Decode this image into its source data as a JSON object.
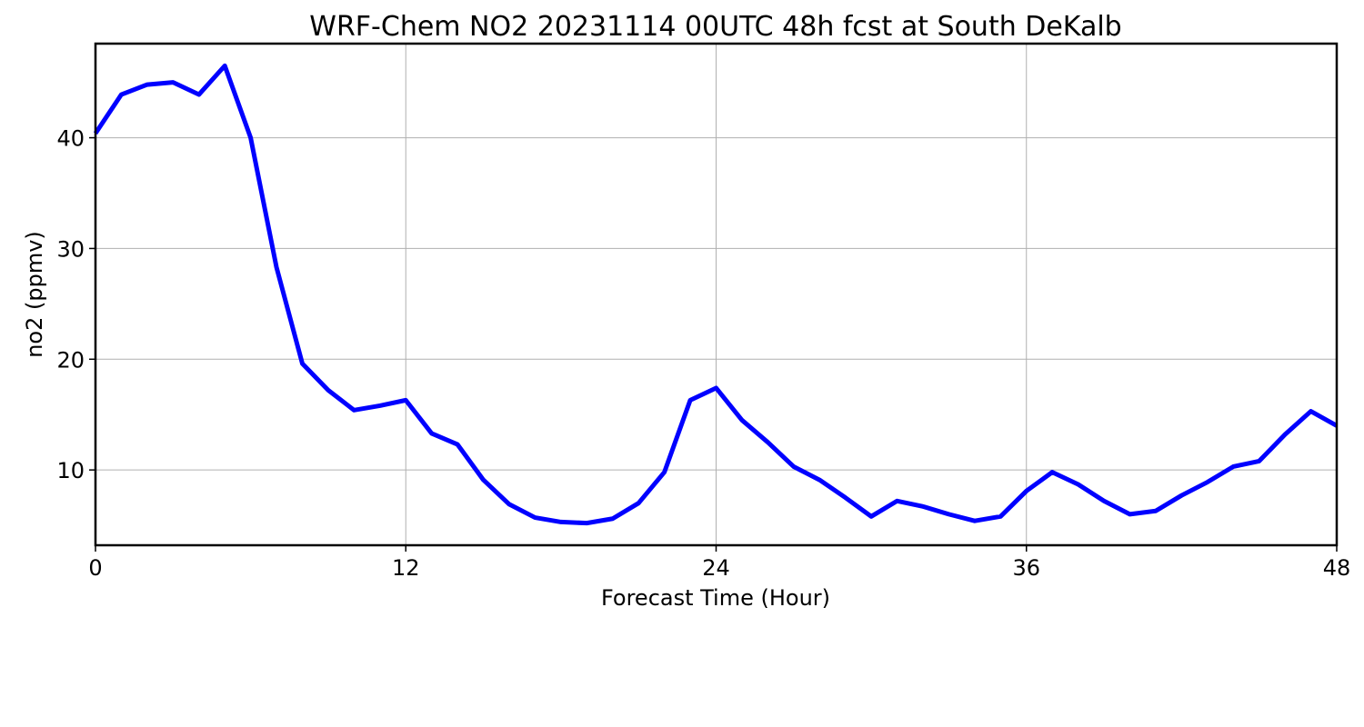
{
  "chart_data": {
    "type": "line",
    "title": "WRF-Chem NO2  20231114 00UTC 48h fcst at South DeKalb",
    "xlabel": "Forecast Time (Hour)",
    "ylabel": "no2  (ppmv)",
    "xlim": [
      0,
      48
    ],
    "ylim": [
      3.2,
      48.5
    ],
    "x_ticks": [
      0,
      12,
      24,
      36,
      48
    ],
    "x_tick_labels": [
      "0",
      "12",
      "24",
      "36",
      "48"
    ],
    "y_ticks": [
      10,
      20,
      30,
      40
    ],
    "y_tick_labels": [
      "10",
      "20",
      "30",
      "40"
    ],
    "grid": true,
    "legend": false,
    "colors": {
      "line": "#0000ff",
      "grid": "#b0b0b0",
      "axes": "#000000"
    },
    "x": [
      0,
      1,
      2,
      3,
      4,
      5,
      6,
      7,
      8,
      9,
      10,
      11,
      12,
      13,
      14,
      15,
      16,
      17,
      18,
      19,
      20,
      21,
      22,
      23,
      24,
      25,
      26,
      27,
      28,
      29,
      30,
      31,
      32,
      33,
      34,
      35,
      36,
      37,
      38,
      39,
      40,
      41,
      42,
      43,
      44,
      45,
      46,
      47,
      48
    ],
    "series": [
      {
        "values": [
          40.4,
          43.9,
          44.8,
          45.0,
          43.9,
          46.5,
          40.0,
          28.3,
          19.6,
          17.2,
          15.4,
          15.8,
          16.3,
          13.3,
          12.3,
          9.1,
          6.9,
          5.7,
          5.3,
          5.2,
          5.6,
          7.0,
          9.8,
          16.3,
          17.4,
          14.5,
          12.5,
          10.3,
          9.1,
          7.5,
          5.8,
          7.2,
          6.7,
          6.0,
          5.4,
          5.8,
          8.1,
          9.8,
          8.7,
          7.2,
          6.0,
          6.3,
          7.7,
          8.9,
          10.3,
          10.8,
          13.2,
          15.3,
          14.0
        ]
      }
    ]
  }
}
